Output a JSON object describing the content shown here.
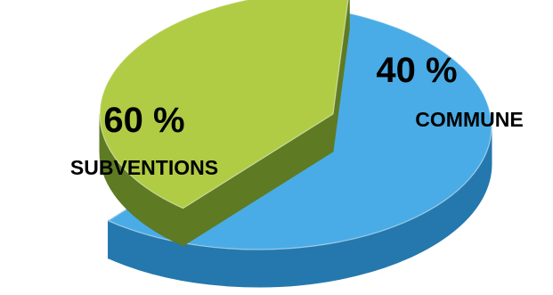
{
  "chart_data": {
    "type": "pie",
    "style": "3d-exploded",
    "categories": [
      "SUBVENTIONS",
      "COMMUNE"
    ],
    "values": [
      60,
      40
    ],
    "value_labels": [
      "60 %",
      "40 %"
    ],
    "colors": {
      "SUBVENTIONS": {
        "top": "#4aace6",
        "side": "#2478ad"
      },
      "COMMUNE": {
        "top": "#b0cc45",
        "side": "#5e7a23"
      }
    },
    "legend": "none"
  }
}
